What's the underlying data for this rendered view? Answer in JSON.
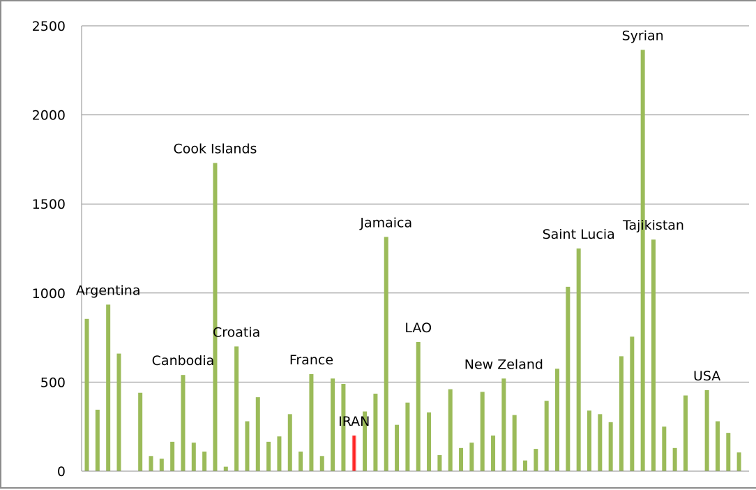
{
  "chart_data": {
    "type": "bar",
    "title": "",
    "xlabel": "",
    "ylabel": "",
    "ylim": [
      0,
      2500
    ],
    "yticks": [
      0,
      500,
      1000,
      1500,
      2000,
      2500
    ],
    "grid": true,
    "legend": "none",
    "colors": {
      "bar": "#9bbb59",
      "highlight": "#ff0000",
      "grid": "#8c8c8c",
      "axis": "#8c8c8c"
    },
    "values": [
      855,
      345,
      935,
      660,
      0,
      440,
      85,
      70,
      165,
      540,
      160,
      110,
      1730,
      25,
      700,
      280,
      415,
      165,
      195,
      320,
      110,
      545,
      85,
      520,
      490,
      200,
      335,
      435,
      1315,
      260,
      385,
      725,
      330,
      90,
      460,
      130,
      160,
      445,
      200,
      520,
      315,
      60,
      125,
      395,
      575,
      1035,
      1250,
      340,
      320,
      275,
      645,
      755,
      2365,
      1300,
      250,
      130,
      425,
      0,
      455,
      280,
      215,
      105
    ],
    "highlight_index": 25,
    "annotations": [
      {
        "text": "Argentina",
        "index": 2
      },
      {
        "text": "Canbodia",
        "index": 9
      },
      {
        "text": "Cook Islands",
        "index": 12
      },
      {
        "text": "Croatia",
        "index": 14
      },
      {
        "text": "France",
        "index": 21
      },
      {
        "text": "IRAN",
        "index": 25
      },
      {
        "text": "Jamaica",
        "index": 28
      },
      {
        "text": "LAO",
        "index": 31
      },
      {
        "text": "New Zeland",
        "index": 39
      },
      {
        "text": "Saint Lucia",
        "index": 46
      },
      {
        "text": "Syrian",
        "index": 52
      },
      {
        "text": "Tajikistan",
        "index": 53
      },
      {
        "text": "USA",
        "index": 58
      }
    ]
  }
}
